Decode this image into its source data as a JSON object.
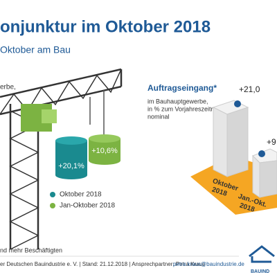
{
  "header": {
    "title": "onjunktur im Oktober 2018",
    "subtitle": "Oktober am Bau"
  },
  "left": {
    "note": "erbe,",
    "weights": [
      "+20,1%",
      "+10,6%"
    ],
    "legend": [
      "Oktober 2018",
      "Jan-Oktober 2018"
    ],
    "bottom_note": "nd mehr Beschäftigten"
  },
  "right": {
    "title": "Auftragseingang*",
    "description": [
      "im Bauhauptgewerbe,",
      "in % zum Vorjahreszeitraum,",
      "nominal"
    ],
    "stack_labels": [
      "+21,0",
      "+9"
    ],
    "floor_labels": [
      [
        "Oktober",
        "2018"
      ],
      [
        "Jan.-Okt.",
        "2018"
      ]
    ]
  },
  "footer": {
    "text": "er Deutschen Bauindustrie e. V. | Stand: 21.12.2018 | Ansprechpartner: Petra Kraus",
    "email": "petra.kraus@bauindustrie.de",
    "logo": "BAUIND"
  }
}
